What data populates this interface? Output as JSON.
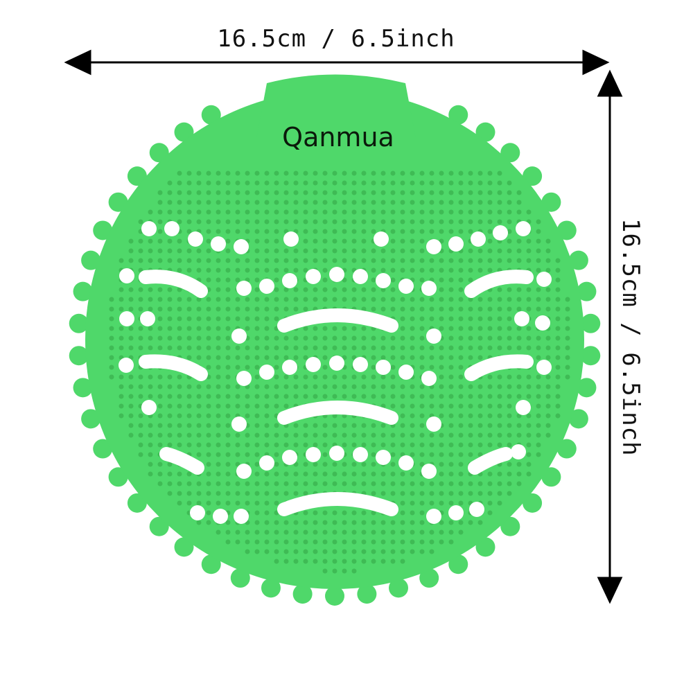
{
  "dimensions": {
    "width_label": "16.5cm / 6.5inch",
    "height_label": "16.5cm / 6.5inch"
  },
  "product": {
    "brand": "Qanmua",
    "name": "urinal screen",
    "color": "#4fd86a",
    "hole_color": "#ffffff",
    "nub_color": "#3fbb55"
  },
  "icons": [
    "arrow-left-icon",
    "arrow-right-icon",
    "arrow-up-icon",
    "arrow-down-icon"
  ]
}
